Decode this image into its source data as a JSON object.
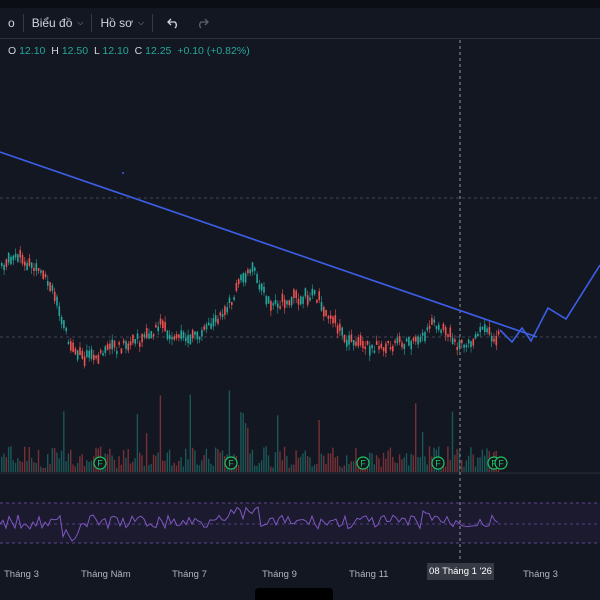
{
  "toolbar": {
    "items": [
      {
        "label": "o"
      },
      {
        "label": "Biểu đồ"
      },
      {
        "label": "Hồ sơ"
      }
    ],
    "undo_icon": "undo-icon",
    "redo_icon": "redo-icon"
  },
  "ohlc": {
    "open_label": "O",
    "open": "12.10",
    "high_label": "H",
    "high": "12.50",
    "low_label": "L",
    "low": "12.10",
    "close_label": "C",
    "close": "12.25",
    "change": "+0.10 (+0.82%)"
  },
  "x_axis": {
    "labels": [
      "Tháng 3",
      "Tháng Năm",
      "Tháng 7",
      "Tháng 9",
      "Tháng 11",
      "Tháng 3"
    ],
    "crosshair_date": "08 Tháng 1 '26"
  },
  "event_markers": {
    "label": "F",
    "count": 6
  },
  "colors": {
    "background": "#131722",
    "up": "#26a69a",
    "down": "#ef5350",
    "trendline": "#3d5ee6",
    "rsi": "#7e57c2"
  }
}
